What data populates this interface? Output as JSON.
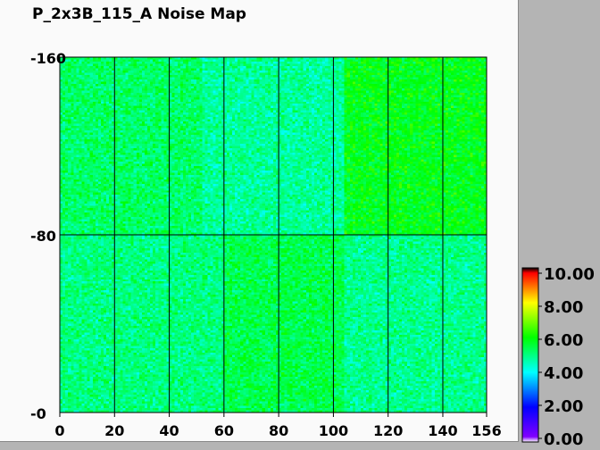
{
  "chart_data": {
    "type": "heatmap",
    "title": "P_2x3B_115_A Noise Map",
    "x_range": [
      0,
      156
    ],
    "y_range": [
      0,
      160
    ],
    "x_ticks": [
      "0",
      "20",
      "40",
      "60",
      "80",
      "100",
      "120",
      "140",
      "156"
    ],
    "y_ticks": [
      "0",
      "80",
      "160"
    ],
    "grid": true,
    "colorbar": {
      "range": [
        0,
        10
      ],
      "ticks": [
        "0.00",
        "2.00",
        "4.00",
        "6.00",
        "8.00",
        "10.00"
      ],
      "colors": [
        "#ffffff",
        "#8000ff",
        "#0000ff",
        "#00ffff",
        "#00ff00",
        "#ffff00",
        "#ff0000",
        "#000000"
      ]
    },
    "approx_block_means": [
      {
        "x": [
          0,
          52
        ],
        "y": [
          80,
          160
        ],
        "value": 5.2
      },
      {
        "x": [
          52,
          104
        ],
        "y": [
          80,
          160
        ],
        "value": 4.8
      },
      {
        "x": [
          104,
          156
        ],
        "y": [
          80,
          160
        ],
        "value": 5.8
      },
      {
        "x": [
          0,
          60
        ],
        "y": [
          0,
          80
        ],
        "value": 5.0
      },
      {
        "x": [
          60,
          104
        ],
        "y": [
          0,
          80
        ],
        "value": 5.4
      },
      {
        "x": [
          104,
          156
        ],
        "y": [
          0,
          80
        ],
        "value": 4.9
      }
    ]
  }
}
